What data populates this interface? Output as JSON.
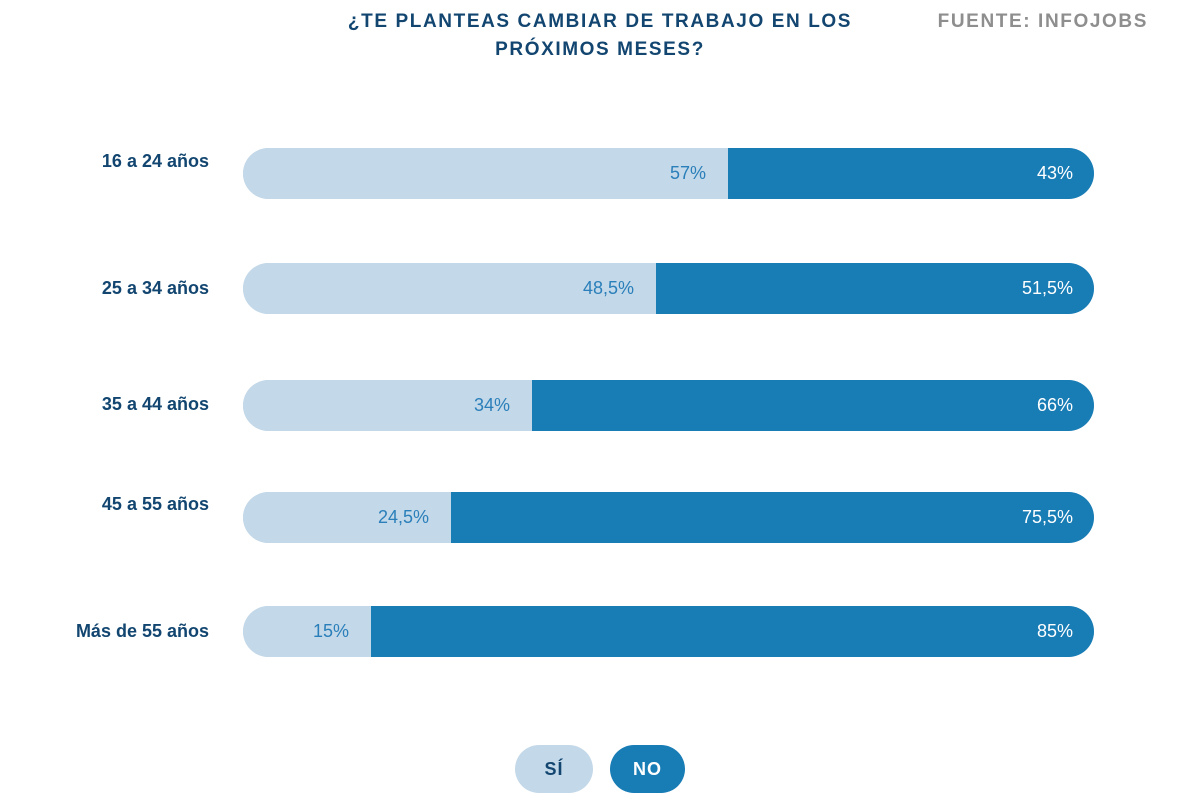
{
  "header": {
    "title_line1": "¿TE PLANTEAS CAMBIAR DE TRABAJO EN LOS",
    "title_line2": "PRÓXIMOS MESES?",
    "source": "FUENTE: INFOJOBS"
  },
  "colors": {
    "title": "#124670",
    "yes": "#c3d8e8",
    "no": "#187cb5",
    "yes_text": "#2a7fba",
    "source": "#8e8e8e"
  },
  "chart_data": {
    "type": "bar",
    "orientation": "horizontal-stacked-100",
    "title": "¿TE PLANTEAS CAMBIAR DE TRABAJO EN LOS PRÓXIMOS MESES?",
    "categories": [
      "16 a 24 años",
      "25 a 34 años",
      "35 a 44 años",
      "45 a 55 años",
      "Más de 55 años"
    ],
    "series": [
      {
        "name": "SÍ",
        "values": [
          57,
          48.5,
          34,
          24.5,
          15
        ],
        "labels": [
          "57%",
          "48,5%",
          "34%",
          "24,5%",
          "15%"
        ]
      },
      {
        "name": "NO",
        "values": [
          43,
          51.5,
          66,
          75.5,
          85
        ],
        "labels": [
          "43%",
          "51,5%",
          "66%",
          "75,5%",
          "85%"
        ]
      }
    ],
    "xlim": [
      0,
      100
    ],
    "xlabel": "",
    "ylabel": "",
    "legend_position": "bottom-center"
  },
  "legend": {
    "yes_label": "SÍ",
    "no_label": "NO"
  }
}
